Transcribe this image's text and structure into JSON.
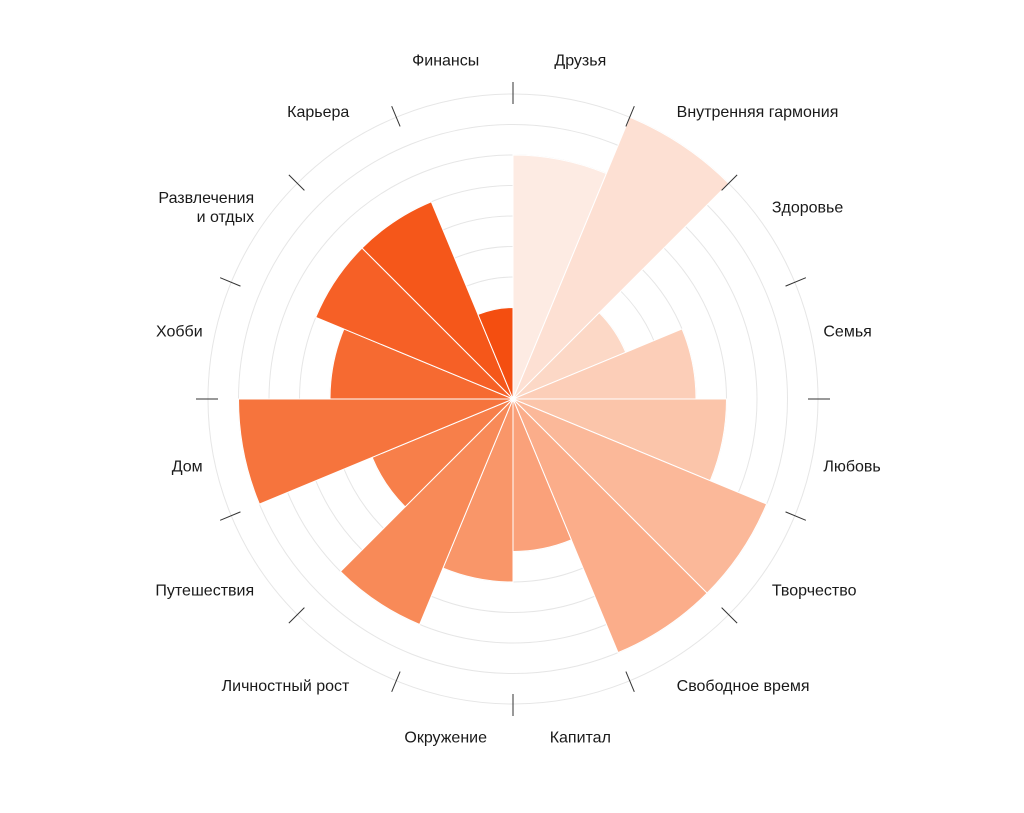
{
  "chart_data": {
    "type": "polar-area",
    "title": "",
    "scale_max": 10,
    "ring_count": 10,
    "grid": true,
    "categories": [
      "Друзья",
      "Внутренняя гармония",
      "Здоровье",
      "Семья",
      "Любовь",
      "Творчество",
      "Свободное время",
      "Капитал",
      "Окружение",
      "Личностный рост",
      "Путешествия",
      "Дом",
      "Хобби",
      "Развлечения и отдых",
      "Карьера",
      "Финансы"
    ],
    "label_lines": [
      [
        "Друзья"
      ],
      [
        "Внутренняя гармония"
      ],
      [
        "Здоровье"
      ],
      [
        "Семья"
      ],
      [
        "Любовь"
      ],
      [
        "Творчество"
      ],
      [
        "Свободное время"
      ],
      [
        "Капитал"
      ],
      [
        "Окружение"
      ],
      [
        "Личностный рост"
      ],
      [
        "Путешествия"
      ],
      [
        "Дом"
      ],
      [
        "Хобби"
      ],
      [
        "Развлечения",
        "и отдых"
      ],
      [
        "Карьера"
      ],
      [
        "Финансы"
      ]
    ],
    "values": [
      8,
      10,
      4,
      6,
      7,
      9,
      9,
      5,
      6,
      8,
      5,
      9,
      6,
      7,
      7,
      3
    ],
    "colors": [
      "#fdebe3",
      "#fde0d3",
      "#fcd8c6",
      "#fcceb8",
      "#fbc5aa",
      "#fbb899",
      "#fbad8a",
      "#faa17a",
      "#f99669",
      "#f88a58",
      "#f77f4a",
      "#f6743d",
      "#f66a31",
      "#f66026",
      "#f5571a",
      "#f44e10"
    ],
    "grid_color": "#e6e6e6",
    "tick_color": "#333333"
  }
}
